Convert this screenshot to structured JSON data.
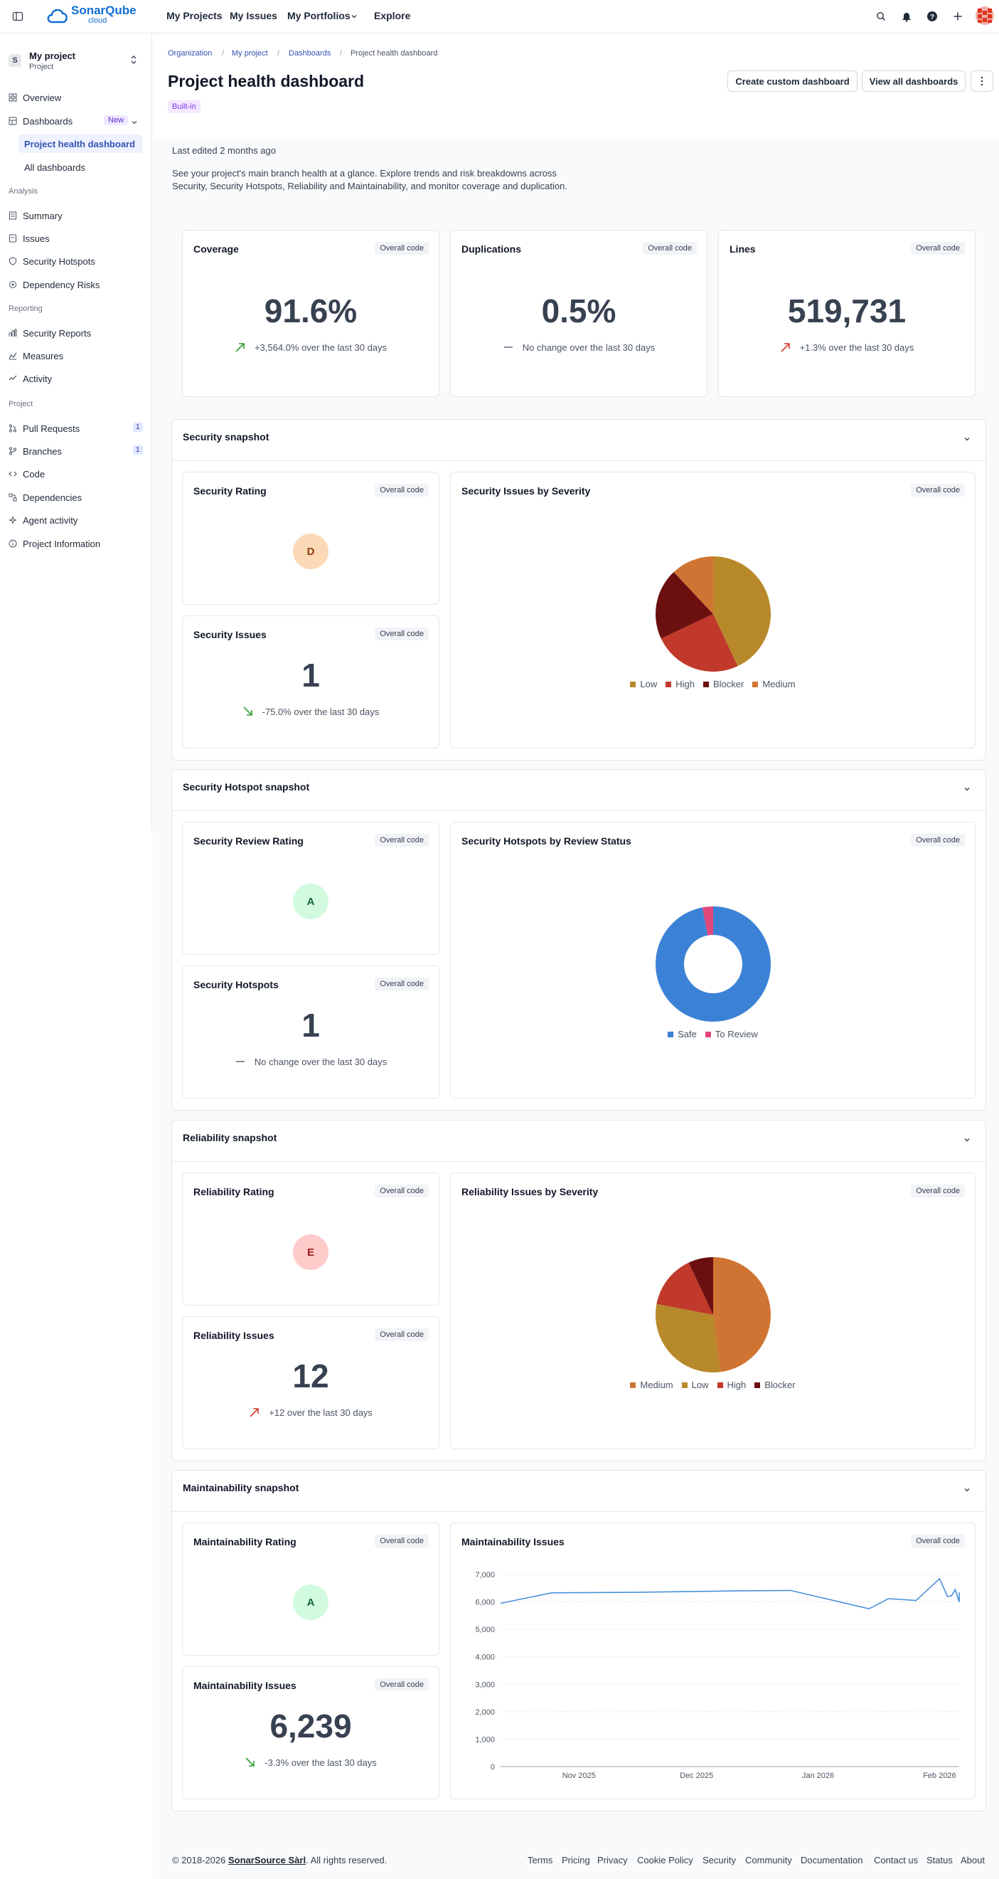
{
  "topbar": {
    "logo_name": "SonarQube",
    "logo_sub": "cloud",
    "nav": [
      "My Projects",
      "My Issues",
      "My Portfolios",
      "Explore"
    ]
  },
  "sidebar": {
    "project_initial": "S",
    "project_name": "My project",
    "project_type": "Project",
    "overview": "Overview",
    "dashboards": "Dashboards",
    "dashboards_badge": "New",
    "sub_active": "Project health dashboard",
    "sub_all": "All dashboards",
    "analysis_section": "Analysis",
    "analysis_items": [
      "Summary",
      "Issues",
      "Security Hotspots",
      "Dependency Risks"
    ],
    "reporting_section": "Reporting",
    "reporting_items": [
      "Security Reports",
      "Measures",
      "Activity"
    ],
    "project_section": "Project",
    "project_items": [
      "Pull Requests",
      "Branches",
      "Code",
      "Dependencies",
      "Agent activity",
      "Project Information"
    ],
    "pr_count": "1",
    "branch_count": "1"
  },
  "header": {
    "breadcrumb": [
      "Organization",
      "My project",
      "Dashboards",
      "Project health dashboard"
    ],
    "title": "Project health dashboard",
    "badge": "Built-in",
    "create_button": "Create custom dashboard",
    "view_all_button": "View all dashboards",
    "last_edited": "Last edited 2 months ago",
    "description_line1": "See your project's main branch health at a glance. Explore trends and risk breakdowns across",
    "description_line2": "Security, Security Hotspots, Reliability and Maintainability, and monitor coverage and duplication."
  },
  "pill_label": "Overall code",
  "metrics": {
    "coverage": {
      "title": "Coverage",
      "value": "91.6%",
      "trend": "+3,564.0% over the last 30 days"
    },
    "duplications": {
      "title": "Duplications",
      "value": "0.5%",
      "trend": "No change over the last 30 days"
    },
    "lines": {
      "title": "Lines",
      "value": "519,731",
      "trend": "+1.3% over the last 30 days"
    }
  },
  "security": {
    "section_title": "Security snapshot",
    "rating_title": "Security Rating",
    "rating": "D",
    "issues_title": "Security Issues",
    "issues_value": "1",
    "issues_trend": "-75.0% over the last 30 days",
    "chart_title": "Security Issues by Severity",
    "legend": [
      "Low",
      "High",
      "Blocker",
      "Medium"
    ]
  },
  "hotspots": {
    "section_title": "Security Hotspot snapshot",
    "rating_title": "Security Review Rating",
    "rating": "A",
    "count_title": "Security Hotspots",
    "count_value": "1",
    "count_trend": "No change over the last 30 days",
    "chart_title": "Security Hotspots by Review Status",
    "legend": [
      "Safe",
      "To Review"
    ]
  },
  "reliability": {
    "section_title": "Reliability snapshot",
    "rating_title": "Reliability Rating",
    "rating": "E",
    "issues_title": "Reliability Issues",
    "issues_value": "12",
    "issues_trend": "+12 over the last 30 days",
    "chart_title": "Reliability Issues by Severity",
    "legend": [
      "Medium",
      "Low",
      "High",
      "Blocker"
    ]
  },
  "maintainability": {
    "section_title": "Maintainability snapshot",
    "rating_title": "Maintainability Rating",
    "rating": "A",
    "issues_title": "Maintainability Issues",
    "issues_value": "6,239",
    "issues_trend": "-3.3% over the last 30 days",
    "chart_title": "Maintainability Issues"
  },
  "colors": {
    "low": "#b8892a",
    "high": "#c0392b",
    "blocker": "#6b0f0f",
    "medium": "#d07434",
    "safe": "#3b82d6",
    "to_review": "#e0487a",
    "line": "#4a90d9"
  },
  "chart_data": [
    {
      "type": "pie",
      "title": "Security Issues by Severity",
      "series": [
        {
          "name": "Low",
          "value": 43
        },
        {
          "name": "High",
          "value": 25
        },
        {
          "name": "Blocker",
          "value": 20
        },
        {
          "name": "Medium",
          "value": 12
        }
      ]
    },
    {
      "type": "pie",
      "title": "Security Hotspots by Review Status",
      "donut": true,
      "series": [
        {
          "name": "Safe",
          "value": 97
        },
        {
          "name": "To Review",
          "value": 3
        }
      ]
    },
    {
      "type": "pie",
      "title": "Reliability Issues by Severity",
      "series": [
        {
          "name": "Medium",
          "value": 48
        },
        {
          "name": "Low",
          "value": 30
        },
        {
          "name": "High",
          "value": 15
        },
        {
          "name": "Blocker",
          "value": 7
        }
      ]
    },
    {
      "type": "line",
      "title": "Maintainability Issues",
      "ylim": [
        0,
        7000
      ],
      "yticks": [
        0,
        1000,
        2000,
        3000,
        4000,
        5000,
        6000,
        7000
      ],
      "ytick_labels": [
        "0",
        "1,000",
        "2,000",
        "3,000",
        "4,000",
        "5,000",
        "6,000",
        "7,000"
      ],
      "xticks": [
        "2025-11-01",
        "2025-12-01",
        "2026-01-01",
        "2026-02-01"
      ],
      "xtick_labels": [
        "Nov 2025",
        "Dec 2025",
        "Jan 2026",
        "Feb 2026"
      ],
      "xlim": [
        "2025-10-12",
        "2026-02-06"
      ],
      "grid": true,
      "points": [
        [
          "2025-10-12",
          5950
        ],
        [
          "2025-10-25",
          6330
        ],
        [
          "2025-11-15",
          6350
        ],
        [
          "2025-12-10",
          6400
        ],
        [
          "2025-12-25",
          6420
        ],
        [
          "2026-01-14",
          5750
        ],
        [
          "2026-01-19",
          6120
        ],
        [
          "2026-01-26",
          6050
        ],
        [
          "2026-02-01",
          6850
        ],
        [
          "2026-02-03",
          6200
        ],
        [
          "2026-02-04",
          6220
        ],
        [
          "2026-02-05",
          6450
        ],
        [
          "2026-02-06",
          6000
        ],
        [
          "2026-02-06",
          6350
        ]
      ]
    }
  ],
  "footer": {
    "copyright_prefix": "© 2018-2026 ",
    "company": "SonarSource Sàrl",
    "copyright_suffix": ". All rights reserved.",
    "links": [
      "Terms",
      "Pricing",
      "Privacy",
      "Cookie Policy",
      "Security",
      "Community",
      "Documentation",
      "Contact us",
      "Status",
      "About"
    ]
  }
}
